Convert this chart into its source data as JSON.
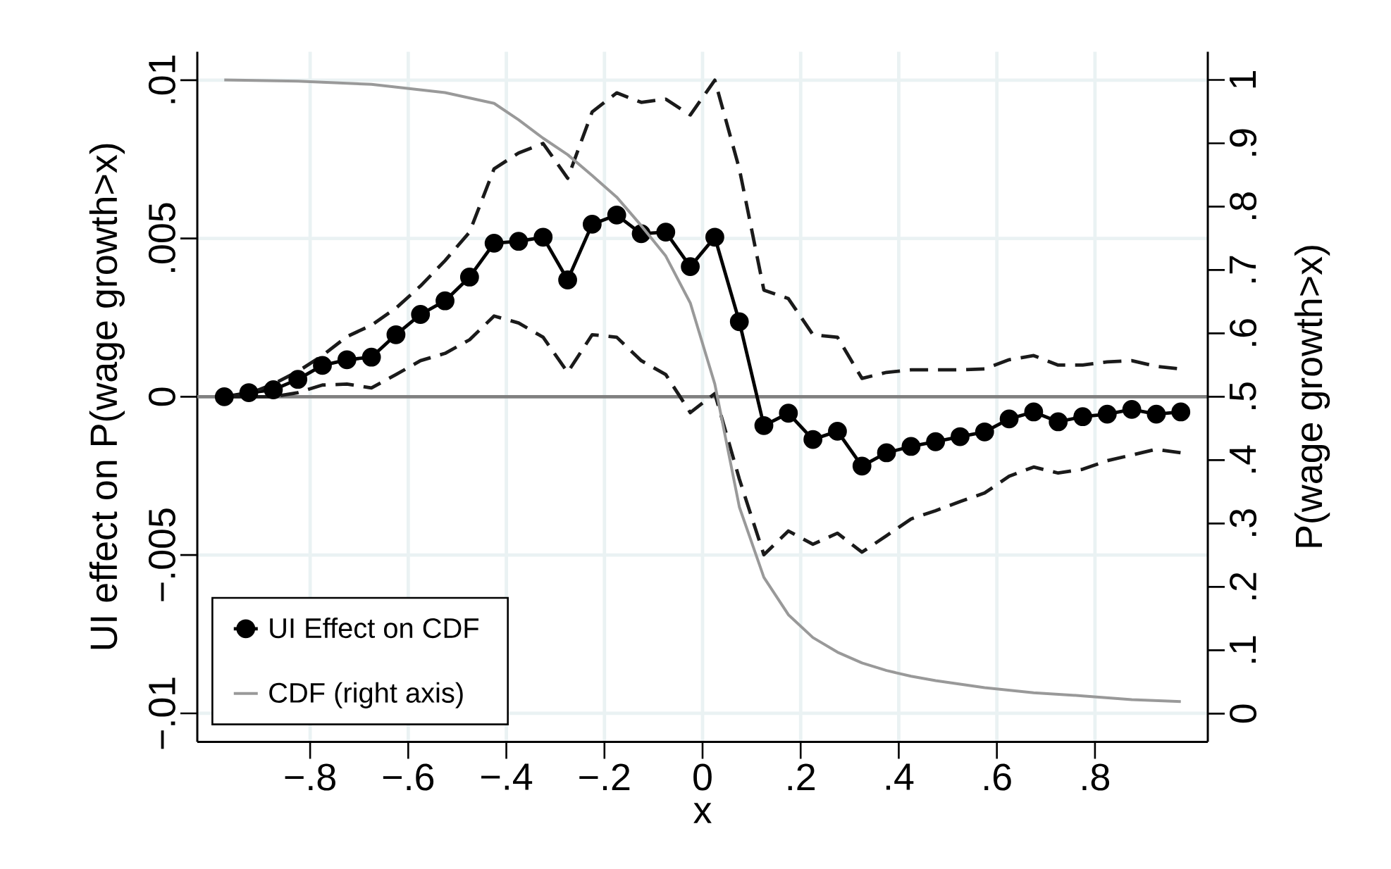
{
  "chart_data": {
    "type": "line",
    "xlabel": "x",
    "ylabel": "UI effect on P(wage growth>x)",
    "y2label": "P(wage growth>x)",
    "x": [
      -0.975,
      -0.925,
      -0.875,
      -0.825,
      -0.775,
      -0.725,
      -0.675,
      -0.625,
      -0.575,
      -0.525,
      -0.475,
      -0.425,
      -0.375,
      -0.325,
      -0.275,
      -0.225,
      -0.175,
      -0.125,
      -0.075,
      -0.025,
      0.025,
      0.075,
      0.125,
      0.175,
      0.225,
      0.275,
      0.325,
      0.375,
      0.425,
      0.475,
      0.525,
      0.575,
      0.625,
      0.675,
      0.725,
      0.775,
      0.825,
      0.875,
      0.925,
      0.975
    ],
    "series": [
      {
        "name": "UI Effect on CDF",
        "color": "#000000",
        "marker": "circle",
        "line_style": "solid",
        "values": [
          0,
          0.00013,
          0.00022,
          0.00055,
          0.00099,
          0.00117,
          0.00125,
          0.00196,
          0.0026,
          0.00303,
          0.00378,
          0.00485,
          0.00491,
          0.00504,
          0.00369,
          0.00545,
          0.00574,
          0.00515,
          0.0052,
          0.00411,
          0.00504,
          0.00237,
          -0.00091,
          -0.00052,
          -0.00135,
          -0.00109,
          -0.00219,
          -0.00177,
          -0.00157,
          -0.00142,
          -0.00126,
          -0.00111,
          -0.0007,
          -0.00048,
          -0.00079,
          -0.00063,
          -0.00055,
          -0.0004,
          -0.00055,
          -0.00048
        ]
      },
      {
        "color": "#1a1a1a",
        "marker": "none",
        "line_style": "dashed",
        "values": [
          0,
          0.0001,
          0.0004,
          0.0008,
          0.0013,
          0.0019,
          0.00226,
          0.0028,
          0.0035,
          0.0043,
          0.0052,
          0.0072,
          0.0077,
          0.008,
          0.0069,
          0.009,
          0.0096,
          0.0093,
          0.0094,
          0.0089,
          0.01,
          0.0072,
          0.00337,
          0.0031,
          0.00196,
          0.00188,
          0.00058,
          0.00077,
          0.00085,
          0.00085,
          0.00085,
          0.00088,
          0.00117,
          0.0013,
          0.001,
          0.001,
          0.0011,
          0.00114,
          0.00096,
          0.00088
        ]
      },
      {
        "color": "#1a1a1a",
        "marker": "none",
        "line_style": "dashed",
        "values": [
          0,
          0,
          0,
          0.00013,
          0.00037,
          0.0004,
          0.00028,
          0.0007,
          0.00114,
          0.00137,
          0.0018,
          0.00255,
          0.00233,
          0.00188,
          0.00077,
          0.00196,
          0.00188,
          0.00114,
          0.0007,
          -0.0005,
          0.0001,
          -0.0026,
          -0.00499,
          -0.00424,
          -0.00466,
          -0.00431,
          -0.00491,
          -0.00439,
          -0.00386,
          -0.0036,
          -0.00331,
          -0.00304,
          -0.00251,
          -0.00222,
          -0.00241,
          -0.00229,
          -0.00202,
          -0.00184,
          -0.00166,
          -0.00177
        ]
      },
      {
        "name": "CDF (right axis)",
        "color": "#999999",
        "marker": "none",
        "line_style": "solid",
        "axis": "y2",
        "x": [
          -0.975,
          -0.825,
          -0.675,
          -0.525,
          -0.425,
          -0.375,
          -0.325,
          -0.275,
          -0.225,
          -0.175,
          -0.125,
          -0.075,
          -0.025,
          0.025,
          0.075,
          0.125,
          0.175,
          0.225,
          0.275,
          0.325,
          0.375,
          0.425,
          0.475,
          0.575,
          0.675,
          0.775,
          0.875,
          0.975
        ],
        "values": [
          1.0,
          0.998,
          0.993,
          0.98,
          0.963,
          0.937,
          0.908,
          0.882,
          0.849,
          0.815,
          0.77,
          0.722,
          0.648,
          0.52,
          0.326,
          0.215,
          0.156,
          0.12,
          0.097,
          0.08,
          0.068,
          0.059,
          0.052,
          0.041,
          0.033,
          0.028,
          0.022,
          0.019
        ]
      }
    ],
    "xlim": [
      -1.03,
      1.03
    ],
    "xticks": [
      {
        "value": -0.8,
        "label": "−.8"
      },
      {
        "value": -0.6,
        "label": "−.6"
      },
      {
        "value": -0.4,
        "label": "−.4"
      },
      {
        "value": -0.2,
        "label": "−.2"
      },
      0,
      {
        "value": 0.2,
        "label": ".2"
      },
      {
        "value": 0.4,
        "label": ".4"
      },
      {
        "value": 0.6,
        "label": ".6"
      },
      {
        "value": 0.8,
        "label": ".8"
      }
    ],
    "ylim": [
      -0.0109,
      0.0109
    ],
    "yticks": [
      {
        "value": -0.01,
        "label": "−.01"
      },
      {
        "value": -0.005,
        "label": "−.005"
      },
      0,
      {
        "value": 0.005,
        "label": ".005"
      },
      {
        "value": 0.01,
        "label": ".01"
      }
    ],
    "y2lim": [
      -0.0445,
      1.0445
    ],
    "y2ticks": [
      0,
      {
        "value": 0.1,
        "label": ".1"
      },
      {
        "value": 0.2,
        "label": ".2"
      },
      {
        "value": 0.3,
        "label": ".3"
      },
      {
        "value": 0.4,
        "label": ".4"
      },
      {
        "value": 0.5,
        "label": ".5"
      },
      {
        "value": 0.6,
        "label": ".6"
      },
      {
        "value": 0.7,
        "label": ".7"
      },
      {
        "value": 0.8,
        "label": ".8"
      },
      {
        "value": 0.9,
        "label": ".9"
      },
      1
    ],
    "ref_lines": [
      {
        "axis": "y",
        "value": 0,
        "color": "#808080"
      }
    ],
    "grid": true,
    "legend": "bottom left"
  }
}
